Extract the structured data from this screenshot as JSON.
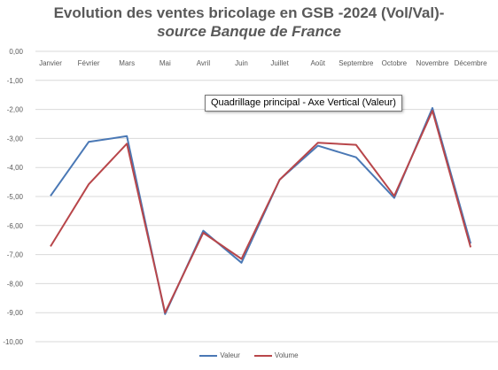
{
  "chart_data": {
    "type": "line",
    "title": "Evolution des ventes bricolage en GSB -2024 (Vol/Val)-",
    "subtitle": "source Banque de France",
    "categories": [
      "Janvier",
      "Février",
      "Mars",
      "Mai",
      "Avril",
      "Juin",
      "Juillet",
      "Août",
      "Septembre",
      "Octobre",
      "Novembre",
      "Décembre"
    ],
    "series": [
      {
        "name": "Valeur",
        "color": "#4a78b5",
        "values": [
          -4.98,
          -3.12,
          -2.92,
          -9.05,
          -6.18,
          -7.28,
          -4.42,
          -3.25,
          -3.65,
          -5.05,
          -1.95,
          -6.62
        ]
      },
      {
        "name": "Volume",
        "color": "#b8464a",
        "values": [
          -6.72,
          -4.58,
          -3.18,
          -9.0,
          -6.25,
          -7.15,
          -4.42,
          -3.15,
          -3.22,
          -4.98,
          -2.05,
          -6.75
        ]
      }
    ],
    "y_ticks": [
      "0,00",
      "-1,00",
      "-2,00",
      "-3,00",
      "-4,00",
      "-5,00",
      "-6,00",
      "-7,00",
      "-8,00",
      "-9,00",
      "-10,00"
    ],
    "ylim": [
      -10,
      0
    ],
    "xlabel": "",
    "ylabel": "",
    "x_axis_position": "top",
    "grid": true,
    "legend_position": "bottom",
    "tooltip": "Quadrillage principal - Axe Vertical (Valeur)"
  },
  "colors": {
    "grid": "#d9d9d9",
    "text": "#595959",
    "title": "#595959"
  }
}
